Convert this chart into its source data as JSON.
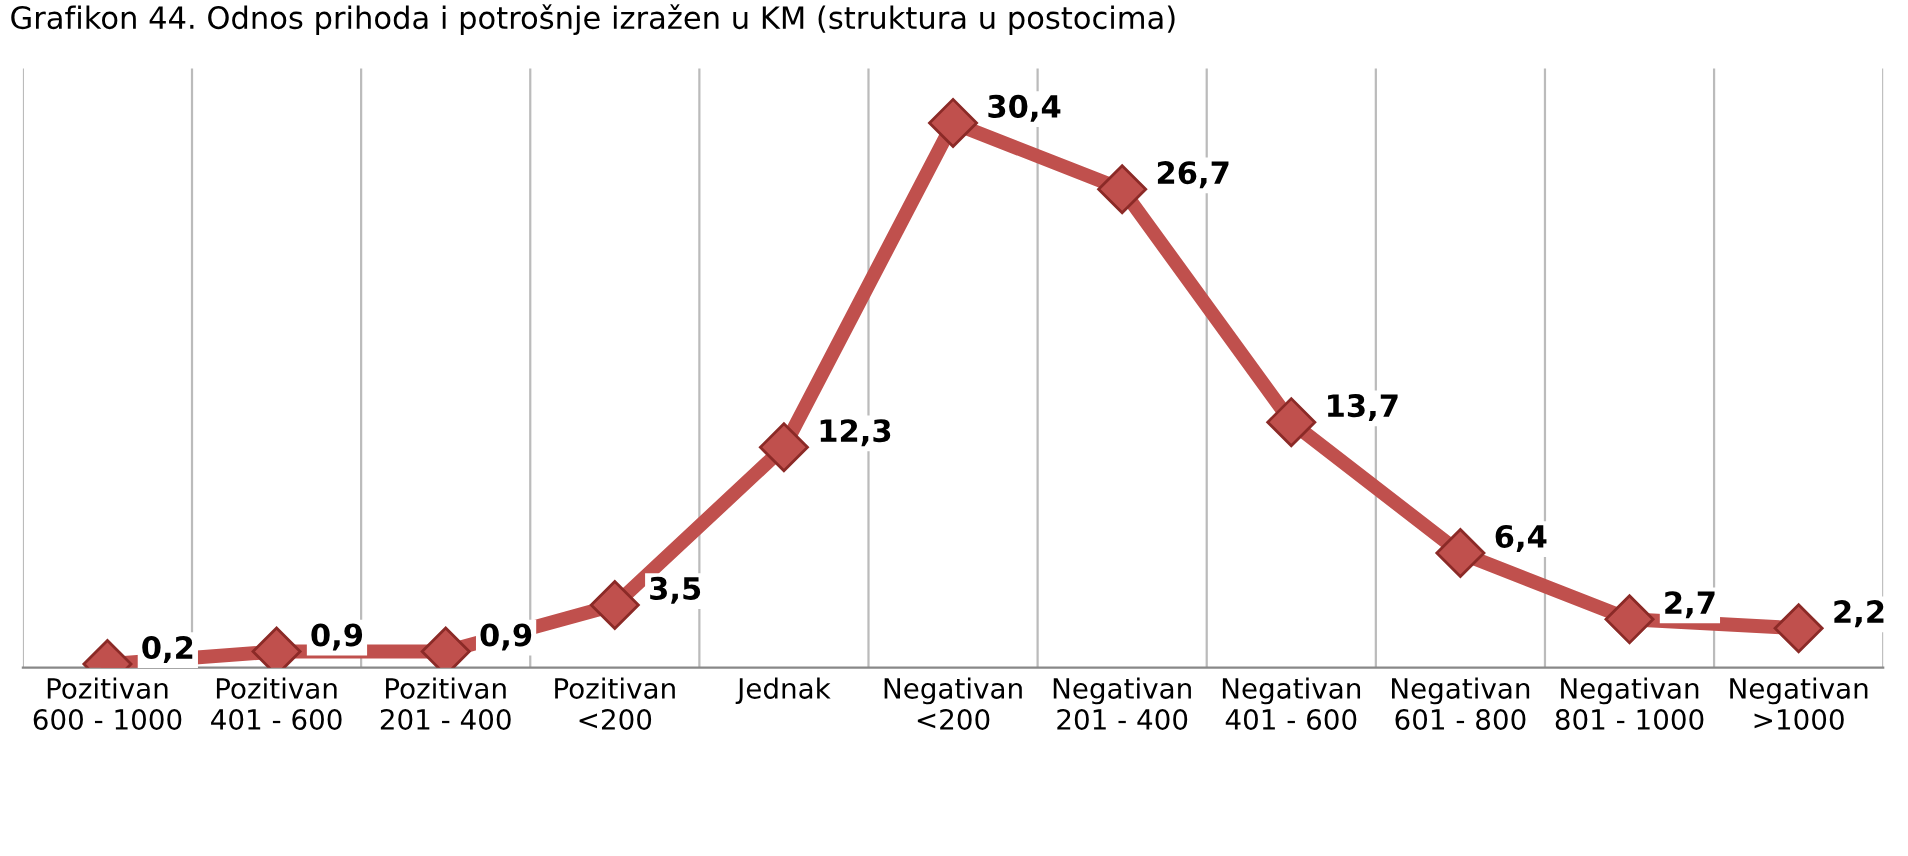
{
  "chart_data": {
    "type": "line",
    "title": "Grafikon 44. Odnos prihoda i potrošnje izražen u KM (struktura u postocima)",
    "categories": [
      "Pozitivan\n600 - 1000",
      "Pozitivan\n401 - 600",
      "Pozitivan\n201 - 400",
      "Pozitivan\n<200",
      "Jednak",
      "Negativan\n<200",
      "Negativan\n201 - 400",
      "Negativan\n401 - 600",
      "Negativan\n601 - 800",
      "Negativan\n801 - 1000",
      "Negativan\n>1000"
    ],
    "series": [
      {
        "color": "#c0504d",
        "values": [
          0.2,
          0.9,
          0.9,
          3.5,
          12.3,
          30.4,
          26.7,
          13.7,
          6.4,
          2.7,
          2.2
        ],
        "value_labels": [
          "0,2",
          "0,9",
          "0,9",
          "3,5",
          "12,3",
          "30,4",
          "26,7",
          "13,7",
          "6,4",
          "2,7",
          "2,2"
        ]
      }
    ],
    "grid": "x",
    "marker": "diamond",
    "line_style": "solid",
    "legend": false
  }
}
